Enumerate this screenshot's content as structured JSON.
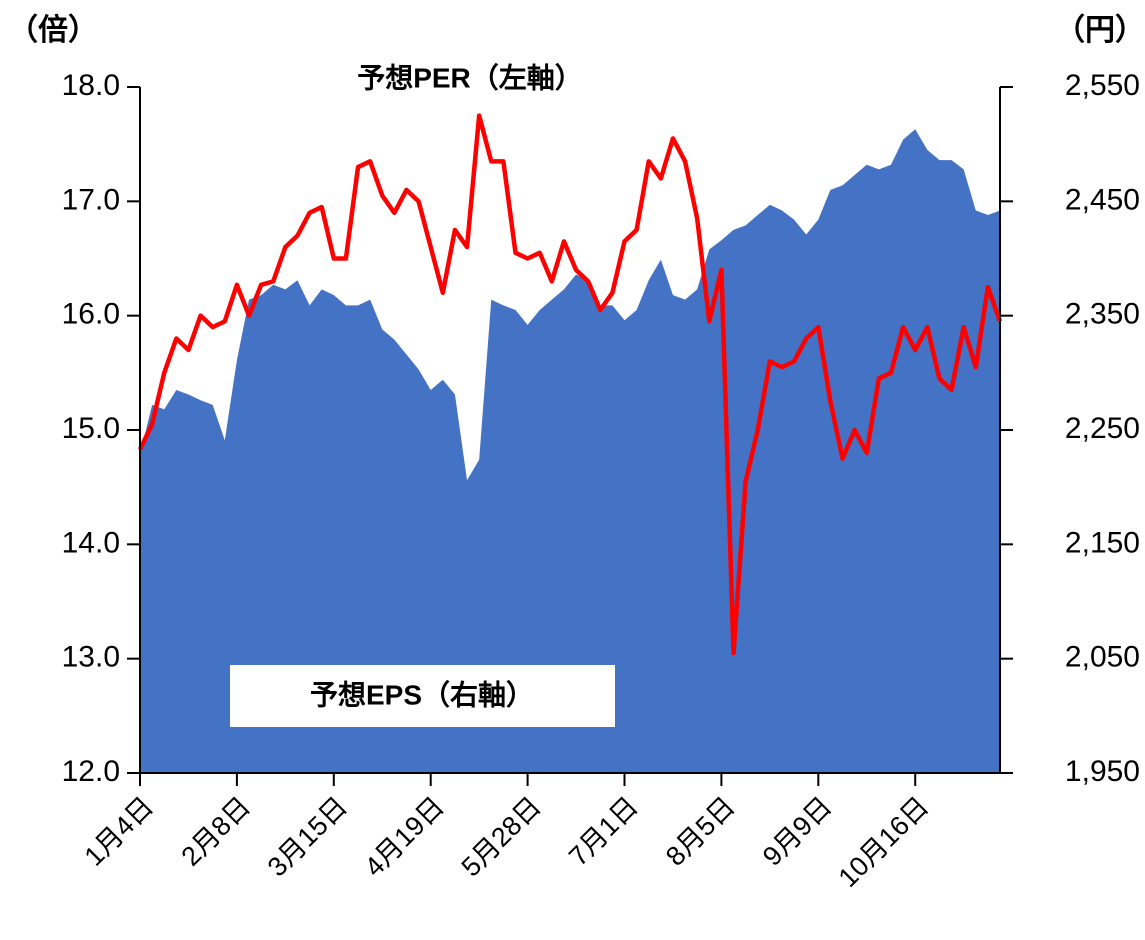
{
  "chart_data": {
    "type": "line",
    "y_label": "（倍）",
    "y2_label": "（円）",
    "categories": [
      "1月4日",
      null,
      null,
      null,
      null,
      null,
      null,
      null,
      "2月8日",
      null,
      null,
      null,
      null,
      null,
      null,
      null,
      "3月15日",
      null,
      null,
      null,
      null,
      null,
      null,
      null,
      "4月19日",
      null,
      null,
      null,
      null,
      null,
      null,
      null,
      "5月28日",
      null,
      null,
      null,
      null,
      null,
      null,
      null,
      "7月1日",
      null,
      null,
      null,
      null,
      null,
      null,
      null,
      "8月5日",
      null,
      null,
      null,
      null,
      null,
      null,
      null,
      "9月9日",
      null,
      null,
      null,
      null,
      null,
      null,
      null,
      "10月16日",
      null,
      null,
      null,
      null,
      null,
      null,
      null
    ],
    "ylim": [
      12,
      18
    ],
    "yticks": [
      {
        "value": 12,
        "label": "12.0"
      },
      {
        "value": 13,
        "label": "13.0"
      },
      {
        "value": 14,
        "label": "14.0"
      },
      {
        "value": 15,
        "label": "15.0"
      },
      {
        "value": 16,
        "label": "16.0"
      },
      {
        "value": 17,
        "label": "17.0"
      },
      {
        "value": 18,
        "label": "18.0"
      }
    ],
    "y2lim": [
      1950,
      2550
    ],
    "y2ticks": [
      {
        "value": 1950,
        "label": "1,950"
      },
      {
        "value": 2050,
        "label": "2,050"
      },
      {
        "value": 2150,
        "label": "2,150"
      },
      {
        "value": 2250,
        "label": "2,250"
      },
      {
        "value": 2350,
        "label": "2,350"
      },
      {
        "value": 2450,
        "label": "2,450"
      },
      {
        "value": 2550,
        "label": "2,550"
      }
    ],
    "series": [
      {
        "name": "予想PER（左軸）",
        "type": "line",
        "axis": "y",
        "color": "#ff0000",
        "values": [
          14.83,
          15.05,
          15.5,
          15.8,
          15.7,
          16.0,
          15.9,
          15.95,
          16.27,
          16.0,
          16.27,
          16.3,
          16.6,
          16.7,
          16.9,
          16.95,
          16.5,
          16.5,
          17.3,
          17.35,
          17.05,
          16.9,
          17.1,
          17.0,
          16.6,
          16.2,
          16.75,
          16.6,
          17.75,
          17.35,
          17.35,
          16.55,
          16.5,
          16.55,
          16.3,
          16.65,
          16.4,
          16.3,
          16.05,
          16.2,
          16.65,
          16.75,
          17.35,
          17.2,
          17.55,
          17.35,
          16.85,
          15.95,
          16.4,
          13.05,
          14.55,
          15.0,
          15.6,
          15.55,
          15.6,
          15.8,
          15.9,
          15.25,
          14.75,
          15.0,
          14.8,
          15.45,
          15.5,
          15.9,
          15.7,
          15.9,
          15.45,
          15.35,
          15.9,
          15.55,
          16.25,
          15.95
        ]
      },
      {
        "name": "予想EPS（右軸）",
        "type": "area",
        "axis": "y2",
        "color": "#4472c4",
        "values": [
          2228,
          2272,
          2268,
          2285,
          2281,
          2276,
          2272,
          2241,
          2311,
          2364,
          2368,
          2377,
          2373,
          2381,
          2359,
          2373,
          2368,
          2359,
          2359,
          2364,
          2338,
          2329,
          2316,
          2303,
          2285,
          2294,
          2281,
          2206,
          2224,
          2364,
          2359,
          2355,
          2342,
          2355,
          2364,
          2373,
          2386,
          2381,
          2359,
          2359,
          2346,
          2355,
          2381,
          2399,
          2368,
          2364,
          2373,
          2408,
          2416,
          2425,
          2429,
          2438,
          2447,
          2442,
          2434,
          2421,
          2434,
          2460,
          2464,
          2473,
          2482,
          2478,
          2482,
          2504,
          2513,
          2495,
          2486,
          2486,
          2478,
          2442,
          2438,
          2442
        ]
      }
    ]
  }
}
